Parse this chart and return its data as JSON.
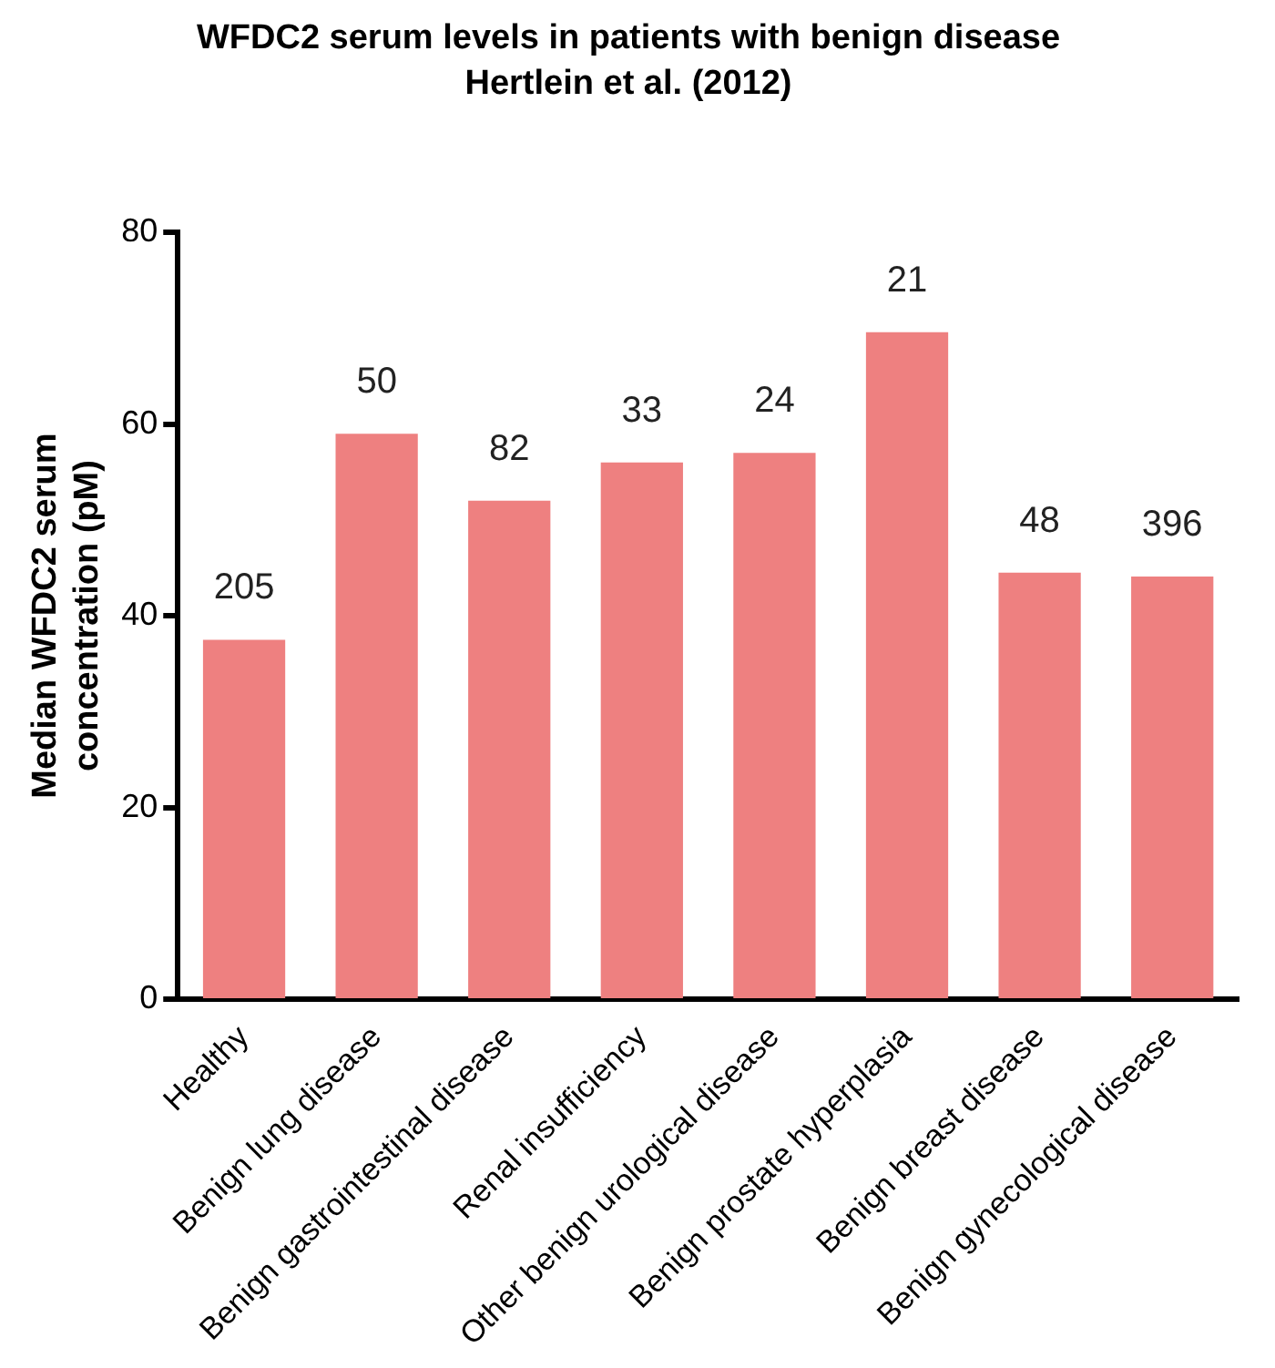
{
  "chart_data": {
    "type": "bar",
    "title": "WFDC2 serum levels in patients with benign disease",
    "subtitle": "Hertlein et al. (2012)",
    "ylabel": "Median WFDC2 serum concentration (pM)",
    "categories": [
      "Healthy",
      "Benign lung disease",
      "Benign gastrointestinal disease",
      "Renal insufficiency",
      "Other benign urological disease",
      "Benign prostate hyperplasia",
      "Benign breast disease",
      "Benign gynecological disease"
    ],
    "values": [
      37.5,
      59,
      52,
      56,
      57,
      69.6,
      44.5,
      44.1
    ],
    "color": "#ee8080",
    "ylim": [
      0,
      80
    ],
    "yticks": [
      0,
      20,
      40,
      60,
      80
    ],
    "grid": false,
    "legend": false,
    "annotations": [
      {
        "text": "205",
        "x": "Healthy",
        "y": 37.5
      },
      {
        "text": "50",
        "x": "Benign lung disease",
        "y": 59
      },
      {
        "text": "82",
        "x": "Benign gastrointestinal disease",
        "y": 52
      },
      {
        "text": "33",
        "x": "Renal insufficiency",
        "y": 56
      },
      {
        "text": "24",
        "x": "Other benign urological disease",
        "y": 57
      },
      {
        "text": "21",
        "x": "Benign prostate hyperplasia",
        "y": 69.6
      },
      {
        "text": "48",
        "x": "Benign breast disease",
        "y": 44.5
      },
      {
        "text": "396",
        "x": "Benign gynecological disease",
        "y": 44.1
      }
    ]
  }
}
